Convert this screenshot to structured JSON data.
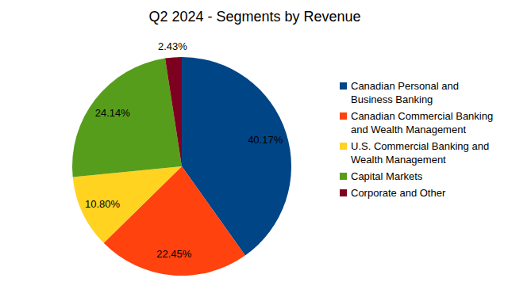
{
  "chart_data": {
    "type": "pie",
    "title": "Q2 2024 - Segments by Revenue",
    "categories": [
      "Canadian Personal and Business Banking",
      "Canadian Commercial Banking and Wealth Management",
      "U.S. Commercial Banking and Wealth Management",
      "Capital Markets",
      "Corporate and Other"
    ],
    "values": [
      40.17,
      22.45,
      10.8,
      24.14,
      2.43
    ],
    "value_labels": [
      "40.17%",
      "22.45%",
      "10.80%",
      "24.14%",
      "2.43%"
    ],
    "colors": [
      "#004586",
      "#ff420e",
      "#ffd320",
      "#579d1c",
      "#7e0021"
    ],
    "data_labels": true,
    "legend": "right"
  }
}
